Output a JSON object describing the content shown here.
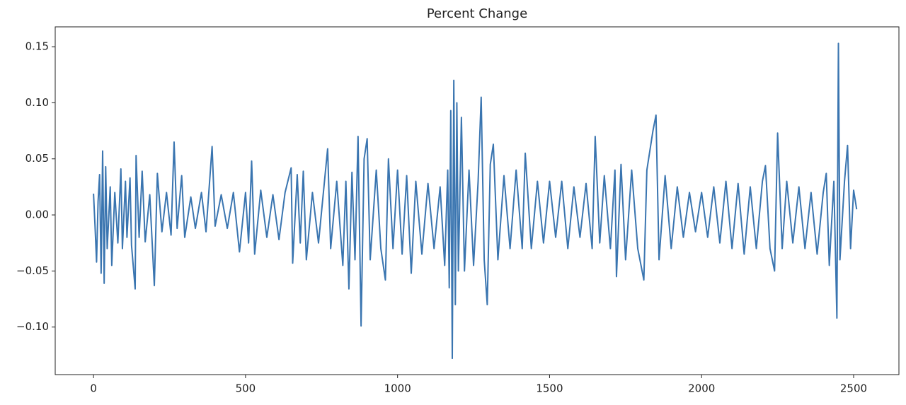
{
  "chart_data": {
    "type": "line",
    "title": "Percent Change",
    "x": [
      0,
      5,
      10,
      15,
      20,
      25,
      30,
      35,
      40,
      45,
      55,
      60,
      70,
      80,
      90,
      95,
      105,
      110,
      120,
      125,
      137,
      140,
      150,
      160,
      170,
      185,
      200,
      210,
      225,
      240,
      255,
      265,
      275,
      290,
      300,
      320,
      335,
      355,
      370,
      390,
      400,
      420,
      440,
      460,
      480,
      500,
      510,
      520,
      530,
      550,
      570,
      590,
      610,
      630,
      650,
      655,
      670,
      680,
      690,
      700,
      720,
      740,
      770,
      780,
      800,
      820,
      830,
      840,
      850,
      860,
      870,
      880,
      890,
      900,
      910,
      930,
      945,
      960,
      970,
      985,
      1000,
      1015,
      1030,
      1045,
      1060,
      1080,
      1100,
      1120,
      1140,
      1155,
      1165,
      1170,
      1175,
      1180,
      1185,
      1190,
      1195,
      1200,
      1210,
      1220,
      1235,
      1250,
      1265,
      1275,
      1285,
      1295,
      1305,
      1315,
      1330,
      1350,
      1370,
      1390,
      1410,
      1420,
      1440,
      1460,
      1480,
      1500,
      1520,
      1540,
      1560,
      1580,
      1600,
      1620,
      1640,
      1650,
      1665,
      1680,
      1700,
      1715,
      1720,
      1735,
      1750,
      1770,
      1790,
      1810,
      1820,
      1840,
      1850,
      1860,
      1880,
      1900,
      1920,
      1940,
      1960,
      1980,
      2000,
      2020,
      2040,
      2060,
      2080,
      2100,
      2120,
      2140,
      2160,
      2180,
      2200,
      2210,
      2225,
      2240,
      2250,
      2265,
      2280,
      2300,
      2320,
      2340,
      2360,
      2380,
      2400,
      2410,
      2420,
      2435,
      2445,
      2450,
      2455,
      2470,
      2480,
      2490,
      2500,
      2510
    ],
    "series": [
      {
        "name": "Percent Change",
        "color": "#3a75b0",
        "values": [
          0.019,
          -0.01,
          -0.042,
          0.012,
          0.036,
          -0.052,
          0.057,
          -0.061,
          0.043,
          -0.03,
          0.025,
          -0.045,
          0.02,
          -0.025,
          0.041,
          -0.03,
          0.03,
          -0.02,
          0.033,
          -0.027,
          -0.066,
          0.053,
          -0.02,
          0.039,
          -0.024,
          0.018,
          -0.063,
          0.037,
          -0.015,
          0.02,
          -0.018,
          0.065,
          -0.012,
          0.035,
          -0.02,
          0.016,
          -0.012,
          0.02,
          -0.015,
          0.061,
          -0.01,
          0.018,
          -0.012,
          0.02,
          -0.033,
          0.02,
          -0.025,
          0.048,
          -0.035,
          0.022,
          -0.02,
          0.018,
          -0.022,
          0.02,
          0.042,
          -0.043,
          0.036,
          -0.025,
          0.039,
          -0.04,
          0.02,
          -0.025,
          0.059,
          -0.03,
          0.03,
          -0.045,
          0.03,
          -0.066,
          0.038,
          -0.04,
          0.07,
          -0.099,
          0.05,
          0.068,
          -0.04,
          0.04,
          -0.03,
          -0.058,
          0.05,
          -0.03,
          0.04,
          -0.035,
          0.035,
          -0.052,
          0.03,
          -0.035,
          0.028,
          -0.03,
          0.025,
          -0.045,
          0.04,
          -0.065,
          0.093,
          -0.128,
          0.12,
          -0.08,
          0.1,
          -0.05,
          0.087,
          -0.05,
          0.04,
          -0.045,
          0.03,
          0.105,
          -0.04,
          -0.08,
          0.045,
          0.063,
          -0.04,
          0.035,
          -0.03,
          0.04,
          -0.03,
          0.055,
          -0.03,
          0.03,
          -0.025,
          0.03,
          -0.02,
          0.03,
          -0.03,
          0.025,
          -0.02,
          0.028,
          -0.03,
          0.07,
          -0.025,
          0.035,
          -0.03,
          0.04,
          -0.055,
          0.045,
          -0.04,
          0.04,
          -0.03,
          -0.058,
          0.04,
          0.075,
          0.089,
          -0.04,
          0.035,
          -0.03,
          0.025,
          -0.02,
          0.02,
          -0.015,
          0.02,
          -0.02,
          0.025,
          -0.025,
          0.03,
          -0.03,
          0.028,
          -0.035,
          0.025,
          -0.03,
          0.03,
          0.044,
          -0.03,
          -0.05,
          0.073,
          -0.03,
          0.03,
          -0.025,
          0.025,
          -0.03,
          0.02,
          -0.035,
          0.02,
          0.037,
          -0.045,
          0.03,
          -0.092,
          0.153,
          -0.04,
          0.03,
          0.062,
          -0.03,
          0.022,
          0.005
        ]
      }
    ],
    "xlim": [
      -126,
      2649
    ],
    "xticks": [
      0,
      500,
      1000,
      1500,
      2000,
      2500
    ],
    "ylim": [
      -0.1424,
      0.1677
    ],
    "yticks": [
      {
        "value": -0.1,
        "label": "−0.10"
      },
      {
        "value": -0.05,
        "label": "−0.05"
      },
      {
        "value": 0,
        "label": "0.00"
      },
      {
        "value": 0.05,
        "label": "0.05"
      },
      {
        "value": 0.1,
        "label": "0.10"
      },
      {
        "value": 0.15,
        "label": "0.15"
      }
    ],
    "grid": false
  }
}
